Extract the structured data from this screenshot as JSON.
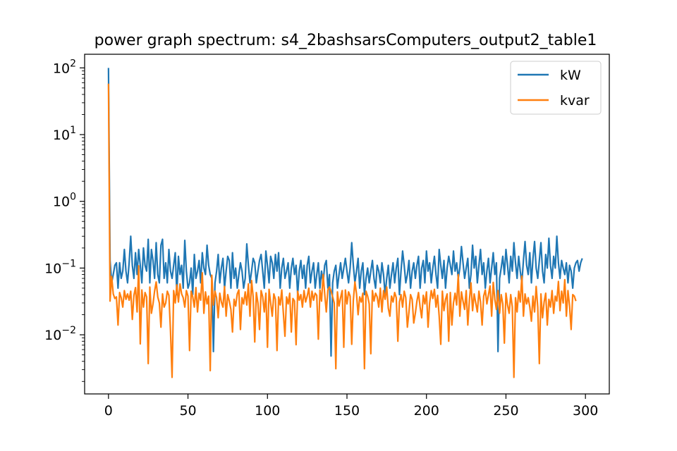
{
  "chart_data": {
    "type": "line",
    "title": "power graph spectrum: s4_2bashsarsComputers_output2_table1",
    "xlabel": "",
    "ylabel": "",
    "x_range": [
      -15,
      315
    ],
    "y_scale": "log",
    "y_range": [
      0.0013,
      160
    ],
    "x_ticks": [
      0,
      50,
      100,
      150,
      200,
      250,
      300
    ],
    "x_tick_labels": [
      "0",
      "50",
      "100",
      "150",
      "200",
      "250",
      "300"
    ],
    "y_ticks": [
      0.01,
      0.1,
      1,
      10,
      100
    ],
    "y_tick_labels": [
      {
        "base": "10",
        "exp": "−2"
      },
      {
        "base": "10",
        "exp": "−1"
      },
      {
        "base": "10",
        "exp": "0"
      },
      {
        "base": "10",
        "exp": "1"
      },
      {
        "base": "10",
        "exp": "2"
      }
    ],
    "grid": false,
    "legend_position": "top-right",
    "series": [
      {
        "name": "kW",
        "color": "#1f77b4",
        "x_start": 0,
        "x_step": 1,
        "values": [
          100,
          0.13,
          0.06,
          0.08,
          0.11,
          0.12,
          0.05,
          0.12,
          0.07,
          0.09,
          0.19,
          0.09,
          0.06,
          0.12,
          0.3,
          0.11,
          0.07,
          0.17,
          0.08,
          0.19,
          0.11,
          0.06,
          0.2,
          0.11,
          0.09,
          0.27,
          0.06,
          0.19,
          0.13,
          0.07,
          0.24,
          0.08,
          0.06,
          0.22,
          0.27,
          0.07,
          0.12,
          0.06,
          0.19,
          0.09,
          0.07,
          0.11,
          0.17,
          0.04,
          0.15,
          0.08,
          0.11,
          0.05,
          0.26,
          0.09,
          0.05,
          0.06,
          0.1,
          0.04,
          0.16,
          0.07,
          0.09,
          0.13,
          0.06,
          0.17,
          0.1,
          0.08,
          0.22,
          0.11,
          0.08,
          0.07,
          0.0056,
          0.06,
          0.09,
          0.16,
          0.06,
          0.1,
          0.14,
          0.05,
          0.09,
          0.15,
          0.13,
          0.05,
          0.17,
          0.07,
          0.1,
          0.05,
          0.08,
          0.12,
          0.09,
          0.05,
          0.07,
          0.23,
          0.11,
          0.06,
          0.09,
          0.14,
          0.12,
          0.06,
          0.09,
          0.13,
          0.16,
          0.09,
          0.05,
          0.18,
          0.11,
          0.06,
          0.15,
          0.12,
          0.07,
          0.16,
          0.09,
          0.17,
          0.05,
          0.1,
          0.14,
          0.07,
          0.09,
          0.12,
          0.05,
          0.1,
          0.14,
          0.08,
          0.11,
          0.04,
          0.09,
          0.13,
          0.07,
          0.11,
          0.05,
          0.11,
          0.15,
          0.06,
          0.09,
          0.12,
          0.05,
          0.08,
          0.12,
          0.05,
          0.09,
          0.06,
          0.11,
          0.13,
          0.05,
          0.08,
          0.0048,
          0.06,
          0.09,
          0.11,
          0.05,
          0.08,
          0.12,
          0.07,
          0.1,
          0.14,
          0.09,
          0.06,
          0.1,
          0.24,
          0.11,
          0.06,
          0.09,
          0.14,
          0.05,
          0.09,
          0.12,
          0.04,
          0.07,
          0.1,
          0.06,
          0.09,
          0.13,
          0.07,
          0.05,
          0.11,
          0.09,
          0.06,
          0.12,
          0.08,
          0.04,
          0.07,
          0.11,
          0.05,
          0.08,
          0.12,
          0.06,
          0.1,
          0.14,
          0.04,
          0.09,
          0.18,
          0.11,
          0.06,
          0.08,
          0.13,
          0.05,
          0.09,
          0.12,
          0.07,
          0.11,
          0.15,
          0.05,
          0.1,
          0.13,
          0.06,
          0.18,
          0.09,
          0.12,
          0.06,
          0.1,
          0.15,
          0.08,
          0.05,
          0.19,
          0.11,
          0.07,
          0.13,
          0.05,
          0.1,
          0.15,
          0.11,
          0.08,
          0.18,
          0.09,
          0.12,
          0.07,
          0.1,
          0.21,
          0.12,
          0.07,
          0.1,
          0.14,
          0.05,
          0.08,
          0.22,
          0.1,
          0.15,
          0.06,
          0.11,
          0.19,
          0.08,
          0.12,
          0.05,
          0.09,
          0.14,
          0.06,
          0.1,
          0.17,
          0.08,
          0.12,
          0.0056,
          0.07,
          0.1,
          0.15,
          0.08,
          0.19,
          0.11,
          0.06,
          0.15,
          0.09,
          0.24,
          0.12,
          0.07,
          0.15,
          0.09,
          0.06,
          0.13,
          0.25,
          0.11,
          0.08,
          0.17,
          0.06,
          0.14,
          0.25,
          0.1,
          0.07,
          0.13,
          0.24,
          0.09,
          0.06,
          0.16,
          0.1,
          0.28,
          0.11,
          0.07,
          0.15,
          0.1,
          0.3,
          0.12,
          0.07,
          0.13,
          0.1,
          0.08,
          0.12,
          0.06,
          0.11,
          0.09,
          0.05,
          0.1,
          0.12,
          0.13,
          0.09,
          0.12,
          0.14
        ]
      },
      {
        "name": "kvar",
        "color": "#ff7f0e",
        "x_start": 0,
        "x_step": 1,
        "values": [
          58,
          0.032,
          0.075,
          0.041,
          0.035,
          0.037,
          0.014,
          0.043,
          0.036,
          0.026,
          0.046,
          0.034,
          0.041,
          0.033,
          0.045,
          0.017,
          0.039,
          0.051,
          0.022,
          0.108,
          0.0073,
          0.047,
          0.026,
          0.043,
          0.037,
          0.0037,
          0.052,
          0.021,
          0.029,
          0.045,
          0.062,
          0.037,
          0.03,
          0.013,
          0.041,
          0.026,
          0.03,
          0.045,
          0.039,
          0.0115,
          0.0023,
          0.046,
          0.03,
          0.056,
          0.031,
          0.058,
          0.041,
          0.036,
          0.026,
          0.046,
          0.038,
          0.0058,
          0.045,
          0.037,
          0.026,
          0.051,
          0.022,
          0.042,
          0.033,
          0.085,
          0.021,
          0.044,
          0.029,
          0.038,
          0.0029,
          0.078,
          0.028,
          0.045,
          0.036,
          0.018,
          0.042,
          0.031,
          0.026,
          0.053,
          0.019,
          0.04,
          0.032,
          0.024,
          0.011,
          0.034,
          0.027,
          0.041,
          0.047,
          0.012,
          0.036,
          0.029,
          0.044,
          0.028,
          0.058,
          0.019,
          0.065,
          0.037,
          0.0078,
          0.043,
          0.03,
          0.012,
          0.046,
          0.037,
          0.022,
          0.042,
          0.0065,
          0.048,
          0.03,
          0.019,
          0.041,
          0.034,
          0.0058,
          0.037,
          0.028,
          0.047,
          0.021,
          0.0095,
          0.037,
          0.029,
          0.042,
          0.011,
          0.035,
          0.032,
          0.0071,
          0.045,
          0.033,
          0.04,
          0.026,
          0.046,
          0.031,
          0.038,
          0.05,
          0.026,
          0.045,
          0.033,
          0.042,
          0.039,
          0.0086,
          0.047,
          0.032,
          0.08,
          0.041,
          0.022,
          0.047,
          0.052,
          0.045,
          0.037,
          0.03,
          0.0031,
          0.044,
          0.027,
          0.036,
          0.046,
          0.0065,
          0.047,
          0.029,
          0.044,
          0.038,
          0.0072,
          0.033,
          0.062,
          0.041,
          0.02,
          0.037,
          0.031,
          0.042,
          0.0031,
          0.045,
          0.038,
          0.029,
          0.0052,
          0.046,
          0.032,
          0.042,
          0.037,
          0.026,
          0.05,
          0.022,
          0.046,
          0.034,
          0.052,
          0.025,
          0.019,
          0.038,
          0.031,
          0.043,
          0.036,
          0.008,
          0.031,
          0.04,
          0.026,
          0.045,
          0.036,
          0.013,
          0.022,
          0.04,
          0.034,
          0.015,
          0.021,
          0.032,
          0.043,
          0.026,
          0.018,
          0.039,
          0.029,
          0.044,
          0.013,
          0.03,
          0.046,
          0.035,
          0.048,
          0.026,
          0.039,
          0.019,
          0.0072,
          0.045,
          0.023,
          0.034,
          0.041,
          0.008,
          0.043,
          0.014,
          0.03,
          0.042,
          0.028,
          0.08,
          0.019,
          0.044,
          0.032,
          0.024,
          0.046,
          0.014,
          0.033,
          0.06,
          0.023,
          0.041,
          0.03,
          0.022,
          0.045,
          0.031,
          0.014,
          0.038,
          0.047,
          0.029,
          0.04,
          0.054,
          0.019,
          0.061,
          0.034,
          0.024,
          0.046,
          0.021,
          0.04,
          0.029,
          0.0075,
          0.042,
          0.028,
          0.021,
          0.04,
          0.026,
          0.0023,
          0.036,
          0.022,
          0.045,
          0.031,
          0.076,
          0.019,
          0.041,
          0.029,
          0.036,
          0.026,
          0.016,
          0.038,
          0.022,
          0.053,
          0.026,
          0.0037,
          0.041,
          0.018,
          0.031,
          0.042,
          0.014,
          0.034,
          0.026,
          0.046,
          0.021,
          0.038,
          0.032,
          0.063,
          0.023,
          0.045,
          0.03,
          0.067,
          0.019,
          0.046,
          0.027,
          0.012,
          0.04,
          0.038,
          0.032
        ]
      }
    ]
  }
}
